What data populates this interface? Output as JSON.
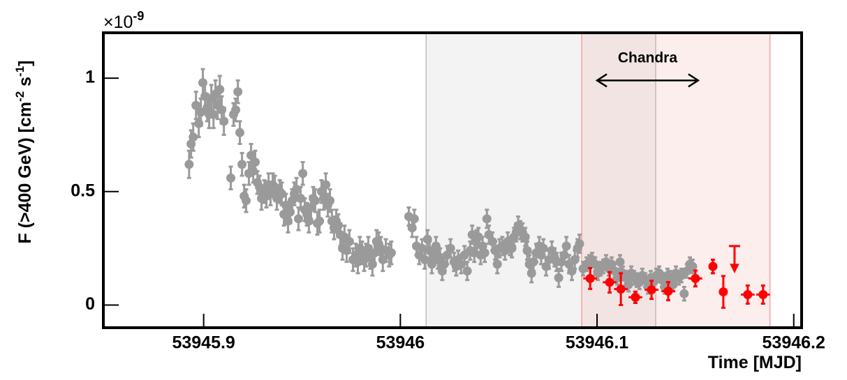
{
  "chart_data": {
    "type": "scatter",
    "ylabel": [
      "F (>400 GeV) [cm",
      "-2",
      " s",
      "-1",
      "]"
    ],
    "y_multiplier": {
      "base": "×10",
      "exponent": "-9"
    },
    "xlabel": "Time [MJD]",
    "xlim": [
      53945.849,
      53946.204
    ],
    "ylim": [
      -0.1,
      1.2
    ],
    "xticks": [
      53945.9,
      53946,
      53946.1,
      53946.2
    ],
    "yticks": [
      0,
      0.5,
      1
    ],
    "shaded_regions": [
      {
        "xlim": [
          53946.0131,
          53946.1298
        ],
        "color": "#bdbdbd"
      },
      {
        "xlim": [
          53946.0922,
          53946.1879
        ],
        "color": "#f2a0a0"
      }
    ],
    "annotation": {
      "text": "Chandra",
      "x": [
        53946.1,
        53946.1514
      ],
      "y": 0.99
    },
    "series": [
      {
        "color": "#9a9a9a",
        "x": [
          53945.8926,
          53945.8936,
          53945.8947,
          53945.8961,
          53945.8975,
          53945.8986,
          53945.8996,
          53945.9007,
          53945.9018,
          53945.9028,
          53945.9039,
          53945.905,
          53945.906,
          53945.9071,
          53945.9082,
          53945.9092,
          53945.9103,
          53945.9138,
          53945.9152,
          53945.9163,
          53945.9174,
          53945.9184,
          53945.9195,
          53945.9206,
          53945.9216,
          53945.923,
          53945.9241,
          53945.9252,
          53945.9262,
          53945.9273,
          53945.9284,
          53945.9294,
          53945.9309,
          53945.9319,
          53945.933,
          53945.934,
          53945.9351,
          53945.9362,
          53945.9372,
          53945.9387,
          53945.9397,
          53945.9408,
          53945.9418,
          53945.9429,
          53945.944,
          53945.945,
          53945.9461,
          53945.9472,
          53945.9482,
          53945.9493,
          53945.9504,
          53945.9514,
          53945.9525,
          53945.9535,
          53945.9546,
          53945.9557,
          53945.9567,
          53945.9578,
          53945.9589,
          53945.9599,
          53945.961,
          53945.9621,
          53945.9631,
          53945.9642,
          53945.9652,
          53945.9663,
          53945.9674,
          53945.9684,
          53945.9695,
          53945.9706,
          53945.9716,
          53945.9727,
          53945.9741,
          53945.9759,
          53945.9773,
          53945.9784,
          53945.9794,
          53945.9805,
          53945.9816,
          53945.9826,
          53945.9837,
          53945.9848,
          53945.9858,
          53945.9869,
          53945.9879,
          53945.989,
          53945.9901,
          53945.9911,
          53945.9926,
          53945.9943,
          53945.9954,
          53946.0043,
          53946.006,
          53946.0071,
          53946.0082,
          53946.0096,
          53946.011,
          53946.0124,
          53946.0138,
          53946.0149,
          53946.016,
          53946.017,
          53946.0181,
          53946.0191,
          53946.0202,
          53946.0213,
          53946.0223,
          53946.0238,
          53946.0255,
          53946.0273,
          53946.0284,
          53946.0294,
          53946.0309,
          53946.0326,
          53946.034,
          53946.0355,
          53946.0365,
          53946.0376,
          53946.0387,
          53946.0397,
          53946.0408,
          53946.0418,
          53946.0429,
          53946.044,
          53946.045,
          53946.0468,
          53946.0482,
          53946.0493,
          53946.0504,
          53946.0518,
          53946.0532,
          53946.0546,
          53946.0557,
          53946.0567,
          53946.0578,
          53946.0589,
          53946.0599,
          53946.061,
          53946.0621,
          53946.0635,
          53946.0645,
          53946.0656,
          53946.0667,
          53946.0677,
          53946.0691,
          53946.0706,
          53946.0716,
          53946.0727,
          53946.0741,
          53946.0755,
          53946.077,
          53946.0784,
          53946.0794,
          53946.0805,
          53946.0819,
          53946.0833,
          53946.0844,
          53946.0858,
          53946.0872,
          53946.0887,
          53946.0901,
          53946.0911,
          53946.0929,
          53946.0947,
          53946.0961,
          53946.0975,
          53946.099,
          53946.1004,
          53946.1018,
          53946.1032,
          53946.1046,
          53946.106,
          53946.1074,
          53946.1089,
          53946.1103,
          53946.1117,
          53946.1131,
          53946.1145,
          53946.116,
          53946.1174,
          53946.1188,
          53946.1202,
          53946.1216,
          53946.123,
          53946.1245,
          53946.1259,
          53946.1273,
          53946.1287,
          53946.1301,
          53946.1316,
          53946.133,
          53946.1344,
          53946.1358,
          53946.1372,
          53946.1387,
          53946.1401,
          53946.1415,
          53946.1429,
          53946.1443,
          53946.1457,
          53946.1472,
          53946.1486
        ],
        "values": [
          0.62,
          0.71,
          0.74,
          0.88,
          0.8,
          0.85,
          0.98,
          0.92,
          0.87,
          0.84,
          0.91,
          0.84,
          0.93,
          0.88,
          0.95,
          0.86,
          0.81,
          0.56,
          0.84,
          0.86,
          0.94,
          0.76,
          0.62,
          0.48,
          0.46,
          0.58,
          0.66,
          0.59,
          0.63,
          0.54,
          0.52,
          0.47,
          0.5,
          0.48,
          0.53,
          0.49,
          0.53,
          0.52,
          0.47,
          0.5,
          0.49,
          0.4,
          0.44,
          0.37,
          0.41,
          0.46,
          0.49,
          0.51,
          0.38,
          0.47,
          0.58,
          0.42,
          0.4,
          0.37,
          0.43,
          0.47,
          0.46,
          0.36,
          0.37,
          0.5,
          0.47,
          0.53,
          0.44,
          0.46,
          0.37,
          0.34,
          0.37,
          0.35,
          0.31,
          0.25,
          0.3,
          0.24,
          0.28,
          0.2,
          0.22,
          0.19,
          0.25,
          0.23,
          0.2,
          0.22,
          0.25,
          0.21,
          0.18,
          0.23,
          0.28,
          0.27,
          0.25,
          0.2,
          0.24,
          0.22,
          0.23,
          0.39,
          0.34,
          0.38,
          0.26,
          0.22,
          0.25,
          0.2,
          0.29,
          0.24,
          0.18,
          0.22,
          0.26,
          0.2,
          0.21,
          0.15,
          0.18,
          0.22,
          0.25,
          0.19,
          0.17,
          0.2,
          0.18,
          0.22,
          0.15,
          0.24,
          0.31,
          0.23,
          0.29,
          0.3,
          0.22,
          0.26,
          0.23,
          0.38,
          0.31,
          0.28,
          0.24,
          0.18,
          0.25,
          0.26,
          0.24,
          0.28,
          0.26,
          0.25,
          0.3,
          0.32,
          0.35,
          0.33,
          0.32,
          0.3,
          0.24,
          0.18,
          0.14,
          0.19,
          0.23,
          0.26,
          0.22,
          0.25,
          0.17,
          0.2,
          0.24,
          0.21,
          0.19,
          0.12,
          0.19,
          0.22,
          0.26,
          0.18,
          0.15,
          0.2,
          0.25,
          0.27,
          0.16,
          0.18,
          0.19,
          0.2,
          0.18,
          0.14,
          0.16,
          0.17,
          0.19,
          0.16,
          0.18,
          0.15,
          0.12,
          0.19,
          0.14,
          0.12,
          0.09,
          0.14,
          0.12,
          0.11,
          0.1,
          0.13,
          0.11,
          0.08,
          0.12,
          0.1,
          0.13,
          0.14,
          0.11,
          0.08,
          0.13,
          0.12,
          0.09,
          0.14,
          0.12,
          0.13,
          0.05,
          0.15,
          0.18,
          0.17
        ],
        "errors": [
          0.06,
          0.06,
          0.06,
          0.06,
          0.06,
          0.06,
          0.06,
          0.06,
          0.06,
          0.06,
          0.06,
          0.06,
          0.06,
          0.06,
          0.06,
          0.06,
          0.06,
          0.05,
          0.05,
          0.05,
          0.05,
          0.05,
          0.05,
          0.05,
          0.05,
          0.05,
          0.05,
          0.05,
          0.05,
          0.05,
          0.05,
          0.05,
          0.05,
          0.05,
          0.05,
          0.05,
          0.05,
          0.05,
          0.05,
          0.05,
          0.05,
          0.05,
          0.05,
          0.05,
          0.05,
          0.05,
          0.05,
          0.05,
          0.05,
          0.05,
          0.05,
          0.05,
          0.05,
          0.05,
          0.05,
          0.05,
          0.05,
          0.05,
          0.05,
          0.05,
          0.05,
          0.05,
          0.05,
          0.05,
          0.05,
          0.05,
          0.05,
          0.05,
          0.05,
          0.05,
          0.05,
          0.05,
          0.05,
          0.05,
          0.05,
          0.05,
          0.05,
          0.05,
          0.05,
          0.05,
          0.05,
          0.05,
          0.05,
          0.05,
          0.05,
          0.05,
          0.05,
          0.05,
          0.05,
          0.05,
          0.05,
          0.04,
          0.04,
          0.04,
          0.04,
          0.04,
          0.04,
          0.04,
          0.04,
          0.04,
          0.04,
          0.04,
          0.04,
          0.04,
          0.04,
          0.04,
          0.04,
          0.04,
          0.04,
          0.04,
          0.04,
          0.04,
          0.04,
          0.04,
          0.04,
          0.04,
          0.04,
          0.04,
          0.04,
          0.04,
          0.04,
          0.04,
          0.04,
          0.04,
          0.04,
          0.04,
          0.04,
          0.04,
          0.04,
          0.04,
          0.04,
          0.04,
          0.04,
          0.04,
          0.04,
          0.04,
          0.04,
          0.04,
          0.04,
          0.04,
          0.04,
          0.04,
          0.04,
          0.04,
          0.04,
          0.04,
          0.04,
          0.04,
          0.04,
          0.04,
          0.04,
          0.04,
          0.04,
          0.04,
          0.04,
          0.04,
          0.04,
          0.04,
          0.04,
          0.04,
          0.04,
          0.04,
          0.03,
          0.03,
          0.03,
          0.03,
          0.03,
          0.03,
          0.03,
          0.03,
          0.03,
          0.03,
          0.03,
          0.03,
          0.03,
          0.03,
          0.03,
          0.03,
          0.03,
          0.03,
          0.03,
          0.03,
          0.03,
          0.03,
          0.03,
          0.03,
          0.03,
          0.03,
          0.03,
          0.03,
          0.03,
          0.03,
          0.03,
          0.03,
          0.03,
          0.03,
          0.03,
          0.03,
          0.03,
          0.03,
          0.03,
          0.03
        ]
      },
      {
        "color": "#ff0000",
        "x": [
          53946.0965,
          53946.1064,
          53946.1121,
          53946.1195,
          53946.1277,
          53946.1362,
          53946.15,
          53946.1589,
          53946.1642,
          53946.1766,
          53946.1844
        ],
        "values": [
          0.117,
          0.1,
          0.07,
          0.034,
          0.067,
          0.061,
          0.117,
          0.17,
          0.058,
          0.046,
          0.046
        ],
        "errors": [
          0.046,
          0.045,
          0.07,
          0.025,
          0.04,
          0.04,
          0.035,
          0.03,
          0.07,
          0.04,
          0.04
        ],
        "xerr": [
          0.0035,
          0.0035,
          0.0035,
          0.0035,
          0.0035,
          0.0035,
          0.0035,
          0.002,
          0.002,
          0.0035,
          0.0035
        ]
      }
    ],
    "upper_limits": {
      "color": "#ff0000",
      "x": [
        53946.1699
      ],
      "values": [
        0.26
      ]
    }
  }
}
